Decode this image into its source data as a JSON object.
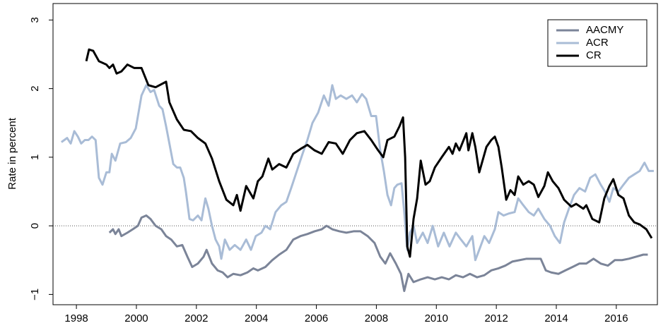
{
  "chart_data": {
    "type": "line",
    "y_label": "Rate in percent",
    "xlim": [
      1997.22,
      2017.37
    ],
    "ylim": [
      -1.15,
      3.24
    ],
    "xticks": [
      1998,
      2000,
      2002,
      2004,
      2006,
      2008,
      2010,
      2012,
      2014,
      2016
    ],
    "yticks": [
      {
        "value": -1,
        "label": "−1"
      },
      0,
      1,
      2,
      3
    ],
    "zero_line": 0,
    "legend": "top-right",
    "series": [
      {
        "name": "AACMY",
        "color": "#7b8498",
        "x": [
          1999.1,
          1999.22,
          1999.3,
          1999.41,
          1999.5,
          1999.7,
          1999.88,
          2000.05,
          2000.17,
          2000.33,
          2000.47,
          2000.64,
          2000.83,
          2000.99,
          2001.16,
          2001.35,
          2001.53,
          2001.7,
          2001.86,
          2002.05,
          2002.24,
          2002.34,
          2002.52,
          2002.71,
          2002.88,
          2003.04,
          2003.23,
          2003.47,
          2003.7,
          2003.9,
          2004.05,
          2004.3,
          2004.53,
          2004.76,
          2005.0,
          2005.23,
          2005.47,
          2005.7,
          2005.94,
          2006.18,
          2006.34,
          2006.53,
          2006.77,
          2007.0,
          2007.24,
          2007.47,
          2007.71,
          2007.94,
          2008.13,
          2008.3,
          2008.46,
          2008.65,
          2008.82,
          2008.93,
          2009.07,
          2009.24,
          2009.48,
          2009.71,
          2009.95,
          2010.18,
          2010.42,
          2010.65,
          2010.89,
          2011.12,
          2011.36,
          2011.6,
          2011.83,
          2012.07,
          2012.3,
          2012.54,
          2012.78,
          2013.01,
          2013.25,
          2013.48,
          2013.65,
          2013.83,
          2014.07,
          2014.3,
          2014.54,
          2014.77,
          2015.0,
          2015.24,
          2015.48,
          2015.72,
          2015.95,
          2016.19,
          2016.42,
          2016.66,
          2016.9,
          2017.05
        ],
        "values": [
          -0.1,
          -0.05,
          -0.12,
          -0.05,
          -0.15,
          -0.1,
          -0.05,
          0.0,
          0.12,
          0.15,
          0.1,
          0.0,
          -0.05,
          -0.15,
          -0.2,
          -0.3,
          -0.28,
          -0.45,
          -0.6,
          -0.55,
          -0.45,
          -0.35,
          -0.55,
          -0.65,
          -0.68,
          -0.75,
          -0.7,
          -0.72,
          -0.68,
          -0.62,
          -0.65,
          -0.6,
          -0.5,
          -0.42,
          -0.35,
          -0.2,
          -0.15,
          -0.12,
          -0.08,
          -0.05,
          0.0,
          -0.05,
          -0.08,
          -0.1,
          -0.08,
          -0.08,
          -0.15,
          -0.25,
          -0.45,
          -0.55,
          -0.4,
          -0.55,
          -0.7,
          -0.95,
          -0.7,
          -0.82,
          -0.78,
          -0.75,
          -0.78,
          -0.75,
          -0.78,
          -0.72,
          -0.75,
          -0.7,
          -0.75,
          -0.72,
          -0.65,
          -0.62,
          -0.58,
          -0.52,
          -0.5,
          -0.48,
          -0.48,
          -0.48,
          -0.65,
          -0.68,
          -0.7,
          -0.65,
          -0.6,
          -0.55,
          -0.55,
          -0.48,
          -0.55,
          -0.58,
          -0.5,
          -0.5,
          -0.48,
          -0.45,
          -0.42,
          -0.42
        ]
      },
      {
        "name": "ACR",
        "color": "#a9bcd6",
        "x": [
          1997.5,
          1997.69,
          1997.81,
          1997.93,
          1998.05,
          1998.16,
          1998.28,
          1998.4,
          1998.52,
          1998.64,
          1998.75,
          1998.87,
          1999.0,
          1999.1,
          1999.18,
          1999.3,
          1999.46,
          1999.65,
          1999.81,
          1999.98,
          2000.17,
          2000.33,
          2000.47,
          2000.59,
          2000.76,
          2000.87,
          2000.99,
          2001.1,
          2001.23,
          2001.35,
          2001.46,
          2001.58,
          2001.65,
          2001.77,
          2001.89,
          2002.05,
          2002.17,
          2002.3,
          2002.4,
          2002.52,
          2002.64,
          2002.76,
          2002.83,
          2002.95,
          2003.11,
          2003.28,
          2003.47,
          2003.66,
          2003.82,
          2003.98,
          2004.17,
          2004.3,
          2004.46,
          2004.64,
          2004.83,
          2005.0,
          2005.16,
          2005.35,
          2005.54,
          2005.7,
          2005.87,
          2006.06,
          2006.25,
          2006.41,
          2006.53,
          2006.65,
          2006.81,
          2007.0,
          2007.19,
          2007.35,
          2007.52,
          2007.66,
          2007.83,
          2007.99,
          2008.13,
          2008.25,
          2008.37,
          2008.49,
          2008.6,
          2008.7,
          2008.84,
          2008.93,
          2009.03,
          2009.12,
          2009.24,
          2009.36,
          2009.55,
          2009.71,
          2009.88,
          2010.06,
          2010.25,
          2010.44,
          2010.65,
          2010.82,
          2011.0,
          2011.2,
          2011.3,
          2011.43,
          2011.6,
          2011.76,
          2011.95,
          2012.07,
          2012.24,
          2012.42,
          2012.61,
          2012.73,
          2012.9,
          2013.08,
          2013.25,
          2013.4,
          2013.6,
          2013.79,
          2013.95,
          2014.12,
          2014.26,
          2014.42,
          2014.59,
          2014.77,
          2014.96,
          2015.13,
          2015.3,
          2015.48,
          2015.62,
          2015.77,
          2015.9,
          2016.07,
          2016.24,
          2016.42,
          2016.6,
          2016.78,
          2016.94,
          2017.08,
          2017.25
        ],
        "values": [
          1.22,
          1.28,
          1.2,
          1.38,
          1.3,
          1.2,
          1.25,
          1.25,
          1.3,
          1.25,
          0.7,
          0.6,
          0.78,
          0.78,
          1.05,
          0.95,
          1.2,
          1.22,
          1.28,
          1.42,
          1.9,
          2.05,
          1.95,
          1.98,
          1.75,
          1.7,
          1.45,
          1.2,
          0.9,
          0.85,
          0.85,
          0.7,
          0.5,
          0.1,
          0.08,
          0.15,
          0.08,
          0.4,
          0.25,
          0.0,
          -0.2,
          -0.3,
          -0.48,
          -0.2,
          -0.35,
          -0.28,
          -0.35,
          -0.2,
          -0.35,
          -0.15,
          -0.1,
          0.0,
          -0.05,
          0.2,
          0.3,
          0.35,
          0.55,
          0.8,
          1.05,
          1.25,
          1.5,
          1.65,
          1.9,
          1.75,
          2.05,
          1.85,
          1.9,
          1.85,
          1.9,
          1.8,
          1.92,
          1.85,
          1.6,
          1.6,
          1.1,
          0.8,
          0.45,
          0.3,
          0.55,
          0.6,
          0.62,
          0.2,
          -0.35,
          -0.1,
          0.0,
          -0.25,
          -0.1,
          -0.25,
          0.0,
          -0.3,
          -0.1,
          -0.3,
          -0.1,
          -0.2,
          -0.3,
          -0.15,
          -0.5,
          -0.35,
          -0.15,
          -0.25,
          -0.05,
          0.2,
          0.15,
          0.18,
          0.2,
          0.4,
          0.3,
          0.2,
          0.15,
          0.25,
          0.1,
          0.0,
          -0.15,
          -0.25,
          0.05,
          0.25,
          0.45,
          0.55,
          0.5,
          0.7,
          0.75,
          0.6,
          0.5,
          0.35,
          0.55,
          0.5,
          0.6,
          0.7,
          0.75,
          0.8,
          0.92,
          0.8,
          0.8
        ]
      },
      {
        "name": "CR",
        "color": "#000000",
        "x": [
          1998.33,
          1998.42,
          1998.56,
          1998.75,
          1999.0,
          1999.1,
          1999.22,
          1999.34,
          1999.5,
          1999.7,
          1999.93,
          2000.17,
          2000.4,
          2000.64,
          2000.99,
          2001.1,
          2001.35,
          2001.58,
          2001.82,
          2002.05,
          2002.3,
          2002.52,
          2002.76,
          2003.0,
          2003.23,
          2003.35,
          2003.47,
          2003.66,
          2003.9,
          2004.05,
          2004.2,
          2004.4,
          2004.53,
          2004.76,
          2005.0,
          2005.23,
          2005.47,
          2005.7,
          2005.94,
          2006.18,
          2006.41,
          2006.65,
          2006.88,
          2007.12,
          2007.35,
          2007.6,
          2007.83,
          2008.06,
          2008.23,
          2008.37,
          2008.6,
          2008.77,
          2008.89,
          2008.96,
          2009.03,
          2009.12,
          2009.24,
          2009.36,
          2009.48,
          2009.64,
          2009.78,
          2009.95,
          2010.18,
          2010.42,
          2010.54,
          2010.65,
          2010.77,
          2011.0,
          2011.07,
          2011.2,
          2011.3,
          2011.43,
          2011.67,
          2011.83,
          2011.95,
          2012.07,
          2012.18,
          2012.33,
          2012.47,
          2012.61,
          2012.73,
          2012.9,
          2013.08,
          2013.25,
          2013.4,
          2013.6,
          2013.72,
          2013.88,
          2014.07,
          2014.26,
          2014.5,
          2014.66,
          2014.9,
          2015.0,
          2015.2,
          2015.43,
          2015.6,
          2015.77,
          2015.9,
          2016.07,
          2016.24,
          2016.42,
          2016.6,
          2016.78,
          2017.0,
          2017.18
        ],
        "values": [
          2.4,
          2.57,
          2.55,
          2.4,
          2.35,
          2.3,
          2.35,
          2.22,
          2.25,
          2.35,
          2.3,
          2.3,
          2.05,
          2.02,
          2.1,
          1.8,
          1.55,
          1.4,
          1.38,
          1.28,
          1.2,
          0.98,
          0.65,
          0.38,
          0.3,
          0.45,
          0.22,
          0.58,
          0.4,
          0.65,
          0.72,
          0.98,
          0.82,
          0.9,
          0.85,
          1.05,
          1.12,
          1.18,
          1.1,
          1.05,
          1.22,
          1.2,
          1.05,
          1.25,
          1.35,
          1.38,
          1.25,
          1.1,
          1.0,
          1.25,
          1.3,
          1.45,
          1.58,
          1.0,
          -0.3,
          -0.45,
          0.1,
          0.4,
          0.95,
          0.6,
          0.65,
          0.85,
          1.0,
          1.15,
          1.05,
          1.2,
          1.1,
          1.35,
          1.1,
          1.35,
          1.15,
          0.78,
          1.15,
          1.25,
          1.3,
          1.15,
          0.85,
          0.38,
          0.52,
          0.45,
          0.72,
          0.6,
          0.65,
          0.6,
          0.42,
          0.58,
          0.78,
          0.65,
          0.55,
          0.38,
          0.28,
          0.32,
          0.25,
          0.3,
          0.1,
          0.05,
          0.4,
          0.58,
          0.68,
          0.45,
          0.4,
          0.15,
          0.05,
          0.02,
          -0.05,
          -0.18
        ]
      }
    ]
  }
}
